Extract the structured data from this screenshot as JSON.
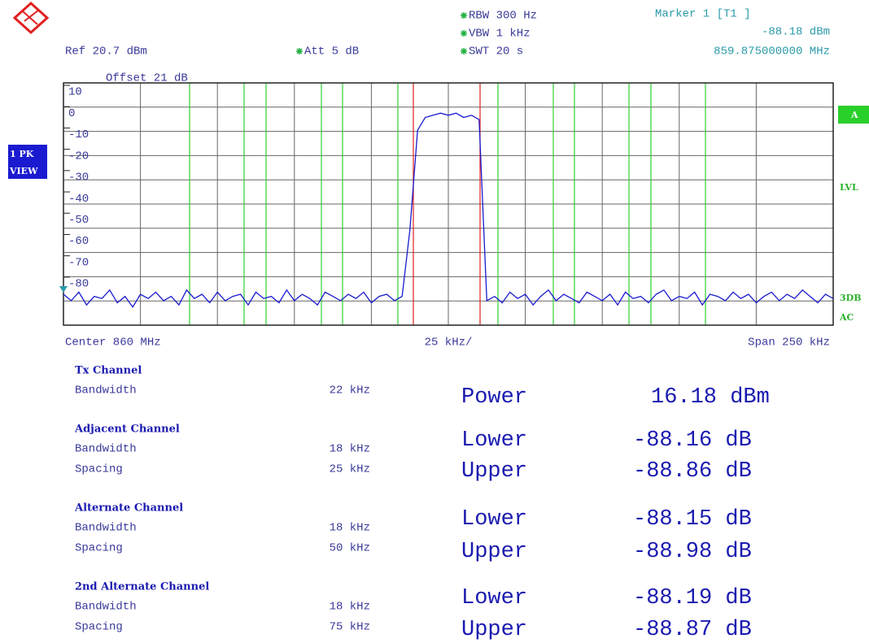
{
  "header": {
    "ref": "Ref  20.7 dBm",
    "att": "Att  5 dB",
    "offset": "Offset  21 dB",
    "rbw": "RBW 300 Hz",
    "vbw": "VBW 1 kHz",
    "swt": "SWT 20 s",
    "marker": {
      "title": "Marker 1 [T1 ]",
      "level": "-88.18 dBm",
      "freq": "859.875000000 MHz"
    }
  },
  "side": {
    "trace": [
      "1 PK",
      "VIEW"
    ],
    "right": [
      "A",
      "LVL",
      "3DB",
      "AC"
    ]
  },
  "footer": {
    "center": "Center 860 MHz",
    "div": "25 kHz/",
    "span": "Span 250 kHz"
  },
  "chart_data": {
    "type": "line",
    "color": "#1a1ad0",
    "xlim": [
      859.875,
      860.125
    ],
    "ylim": [
      -99.5,
      14.2
    ],
    "yticks": [
      10,
      0,
      -10,
      -20,
      -30,
      -40,
      -50,
      -60,
      -70,
      -80
    ],
    "x": [
      859.875,
      859.8775,
      859.88,
      859.8825,
      859.885,
      859.8875,
      859.89,
      859.8925,
      859.895,
      859.8975,
      859.9,
      859.9025,
      859.905,
      859.9075,
      859.91,
      859.9125,
      859.915,
      859.9175,
      859.92,
      859.9225,
      859.925,
      859.9275,
      859.93,
      859.9325,
      859.935,
      859.9375,
      859.94,
      859.9425,
      859.945,
      859.9475,
      859.95,
      859.9525,
      859.955,
      859.9575,
      859.96,
      859.9625,
      859.965,
      859.9675,
      859.97,
      859.9725,
      859.975,
      859.9775,
      859.98,
      859.9825,
      859.985,
      859.9875,
      859.99,
      859.9925,
      859.995,
      859.9975,
      860,
      860.0025,
      860.005,
      860.0075,
      860.01,
      860.0125,
      860.015,
      860.0175,
      860.02,
      860.0225,
      860.025,
      860.0275,
      860.03,
      860.0325,
      860.035,
      860.0375,
      860.04,
      860.0425,
      860.045,
      860.0475,
      860.05,
      860.0525,
      860.055,
      860.0575,
      860.06,
      860.0625,
      860.065,
      860.0675,
      860.07,
      860.0725,
      860.075,
      860.0775,
      860.08,
      860.0825,
      860.085,
      860.0875,
      860.09,
      860.0925,
      860.095,
      860.0975,
      860.1,
      860.1025,
      860.105,
      860.1075,
      860.11,
      860.1125,
      860.115,
      860.1175,
      860.12,
      860.1225,
      860.125
    ],
    "values": [
      -85,
      -88,
      -84,
      -90,
      -86,
      -87,
      -83,
      -89,
      -86,
      -91,
      -85,
      -87,
      -84,
      -88,
      -86,
      -90,
      -83,
      -87,
      -85,
      -89,
      -84,
      -88,
      -86,
      -85,
      -90,
      -84,
      -87,
      -86,
      -89,
      -83,
      -88,
      -85,
      -87,
      -90,
      -84,
      -86,
      -88,
      -85,
      -87,
      -84,
      -89,
      -86,
      -85,
      -88,
      -86,
      -55,
      -8,
      -2,
      -1,
      0,
      -1,
      0,
      -2,
      -1,
      -3,
      -88,
      -86,
      -89,
      -84,
      -87,
      -85,
      -90,
      -86,
      -83,
      -88,
      -85,
      -87,
      -89,
      -84,
      -86,
      -88,
      -85,
      -90,
      -84,
      -87,
      -86,
      -89,
      -85,
      -83,
      -88,
      -86,
      -87,
      -84,
      -90,
      -85,
      -86,
      -88,
      -84,
      -87,
      -85,
      -89,
      -86,
      -84,
      -88,
      -85,
      -87,
      -83,
      -86,
      -89,
      -85,
      -87
    ]
  },
  "table": {
    "sections": [
      {
        "title": "Tx Channel",
        "rows": [
          [
            "Bandwidth",
            "22 kHz"
          ]
        ]
      },
      {
        "title": "Adjacent Channel",
        "rows": [
          [
            "Bandwidth",
            "18 kHz"
          ],
          [
            "Spacing",
            "25 kHz"
          ]
        ]
      },
      {
        "title": "Alternate Channel",
        "rows": [
          [
            "Bandwidth",
            "18 kHz"
          ],
          [
            "Spacing",
            "50 kHz"
          ]
        ]
      },
      {
        "title": "2nd Alternate Channel",
        "rows": [
          [
            "Bandwidth",
            "18 kHz"
          ],
          [
            "Spacing",
            "75 kHz"
          ]
        ]
      }
    ],
    "results": [
      {
        "label": "Power",
        "value": "16.18 dBm"
      },
      {
        "label": "Lower",
        "value": "-88.16 dB"
      },
      {
        "label": "Upper",
        "value": "-88.86 dB"
      },
      {
        "label": "Lower",
        "value": "-88.15 dB"
      },
      {
        "label": "Upper",
        "value": "-88.98 dB"
      },
      {
        "label": "Lower",
        "value": "-88.19 dB"
      },
      {
        "label": "Upper",
        "value": "-88.87 dB"
      }
    ]
  }
}
